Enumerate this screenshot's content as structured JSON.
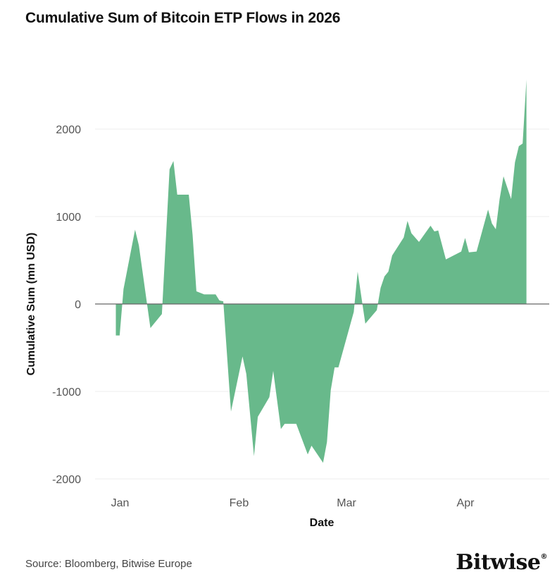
{
  "chart_data": {
    "type": "area",
    "title": "Cumulative Sum of Bitcoin ETP Flows in 2026",
    "xlabel": "Date",
    "ylabel": "Cumulative Sum (mn USD)",
    "ylim": [
      -2000,
      2600
    ],
    "yticks": [
      -2000,
      -1000,
      0,
      1000,
      2000
    ],
    "ytick_labels": [
      "-2000",
      "-1000",
      "0",
      "1000",
      "2000"
    ],
    "xticks": [
      "2026-01-01",
      "2026-02-01",
      "2026-03-01",
      "2026-04-01"
    ],
    "xtick_labels": [
      "Jan",
      "Feb",
      "Mar",
      "Apr"
    ],
    "grid": true,
    "color": "#68B98B",
    "points": [
      [
        "2026-01-01",
        -360
      ],
      [
        "2026-01-02",
        -360
      ],
      [
        "2026-01-03",
        170
      ],
      [
        "2026-01-06",
        850
      ],
      [
        "2026-01-07",
        670
      ],
      [
        "2026-01-10",
        -275
      ],
      [
        "2026-01-13",
        -115
      ],
      [
        "2026-01-15",
        1540
      ],
      [
        "2026-01-16",
        1635
      ],
      [
        "2026-01-17",
        1250
      ],
      [
        "2026-01-20",
        1250
      ],
      [
        "2026-01-21",
        790
      ],
      [
        "2026-01-22",
        145
      ],
      [
        "2026-01-24",
        110
      ],
      [
        "2026-01-27",
        110
      ],
      [
        "2026-01-28",
        40
      ],
      [
        "2026-01-29",
        30
      ],
      [
        "2026-01-31",
        -1230
      ],
      [
        "2026-02-03",
        -600
      ],
      [
        "2026-02-04",
        -800
      ],
      [
        "2026-02-06",
        -1740
      ],
      [
        "2026-02-07",
        -1290
      ],
      [
        "2026-02-10",
        -1065
      ],
      [
        "2026-02-11",
        -765
      ],
      [
        "2026-02-12",
        -1095
      ],
      [
        "2026-02-13",
        -1430
      ],
      [
        "2026-02-14",
        -1370
      ],
      [
        "2026-02-17",
        -1370
      ],
      [
        "2026-02-20",
        -1720
      ],
      [
        "2026-02-21",
        -1620
      ],
      [
        "2026-02-24",
        -1815
      ],
      [
        "2026-02-25",
        -1580
      ],
      [
        "2026-02-26",
        -985
      ],
      [
        "2026-02-27",
        -725
      ],
      [
        "2026-02-28",
        -725
      ],
      [
        "2026-03-04",
        -90
      ],
      [
        "2026-03-05",
        370
      ],
      [
        "2026-03-07",
        -225
      ],
      [
        "2026-03-10",
        -70
      ],
      [
        "2026-03-11",
        185
      ],
      [
        "2026-03-12",
        315
      ],
      [
        "2026-03-13",
        370
      ],
      [
        "2026-03-14",
        555
      ],
      [
        "2026-03-17",
        760
      ],
      [
        "2026-03-18",
        950
      ],
      [
        "2026-03-19",
        810
      ],
      [
        "2026-03-21",
        710
      ],
      [
        "2026-03-24",
        895
      ],
      [
        "2026-03-25",
        830
      ],
      [
        "2026-03-26",
        840
      ],
      [
        "2026-03-28",
        510
      ],
      [
        "2026-04-01",
        600
      ],
      [
        "2026-04-02",
        755
      ],
      [
        "2026-04-03",
        590
      ],
      [
        "2026-04-05",
        600
      ],
      [
        "2026-04-08",
        1080
      ],
      [
        "2026-04-09",
        920
      ],
      [
        "2026-04-10",
        855
      ],
      [
        "2026-04-11",
        1200
      ],
      [
        "2026-04-12",
        1460
      ],
      [
        "2026-04-14",
        1200
      ],
      [
        "2026-04-15",
        1620
      ],
      [
        "2026-04-16",
        1805
      ],
      [
        "2026-04-17",
        1835
      ],
      [
        "2026-04-18",
        2565
      ]
    ]
  },
  "footer": {
    "source": "Source: Bloomberg, Bitwise Europe",
    "logo": "Bitwise",
    "logo_mark": "®"
  }
}
